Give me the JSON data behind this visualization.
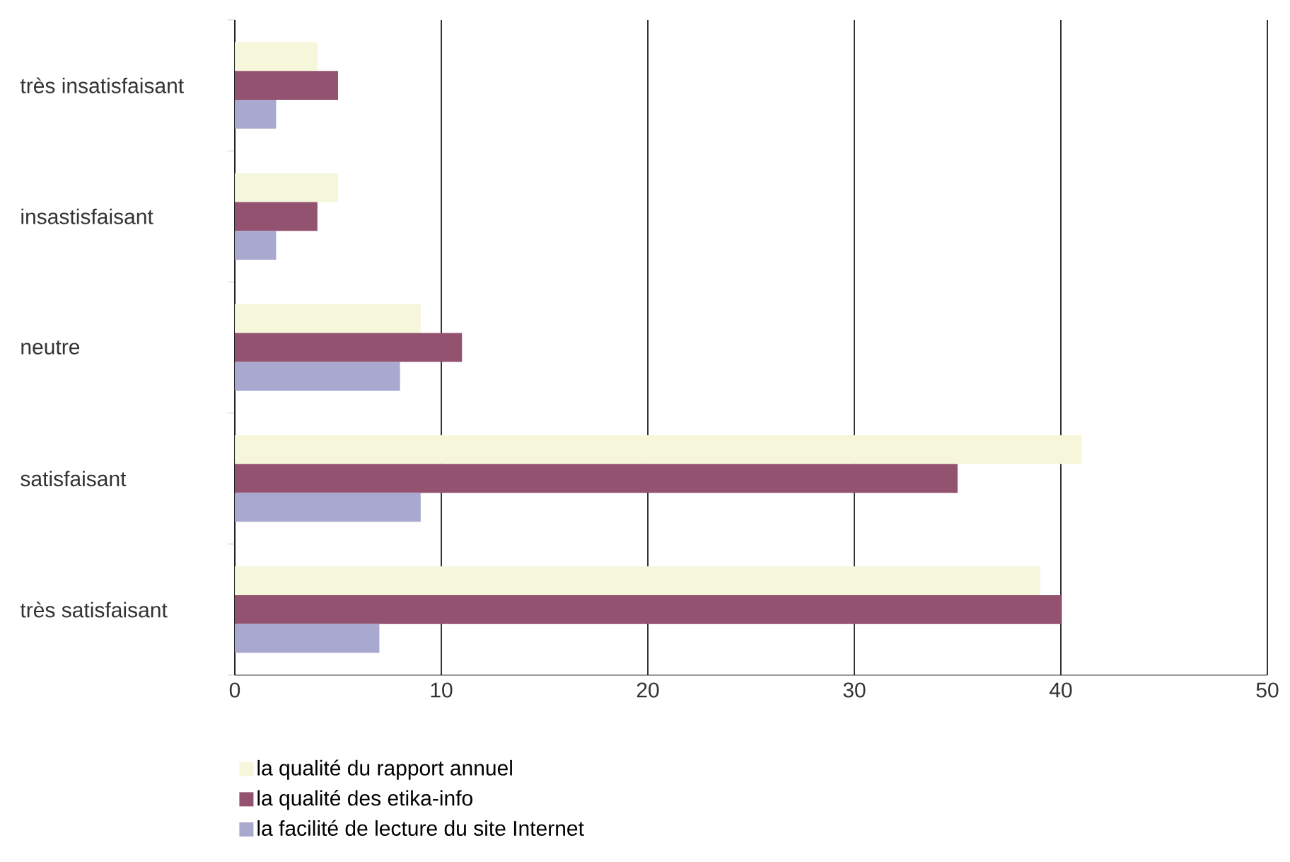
{
  "chart_data": {
    "type": "bar",
    "orientation": "horizontal",
    "categories": [
      "très insatisfaisant",
      "insastisfaisant",
      "neutre",
      "satisfaisant",
      "très satisfaisant"
    ],
    "series": [
      {
        "name": "la qualité du rapport annuel",
        "color": "#f6f7da",
        "values": [
          4,
          5,
          9,
          41,
          39
        ]
      },
      {
        "name": "la qualité des etika-info",
        "color": "#93526f",
        "values": [
          5,
          4,
          11,
          35,
          40
        ]
      },
      {
        "name": "la facilité de lecture du site Internet",
        "color": "#a9a8cf",
        "values": [
          2,
          2,
          8,
          9,
          7
        ]
      }
    ],
    "xlim": [
      0,
      50
    ],
    "xticks": [
      0,
      10,
      20,
      30,
      40,
      50
    ],
    "grid": "x",
    "legend": "bottom left"
  }
}
